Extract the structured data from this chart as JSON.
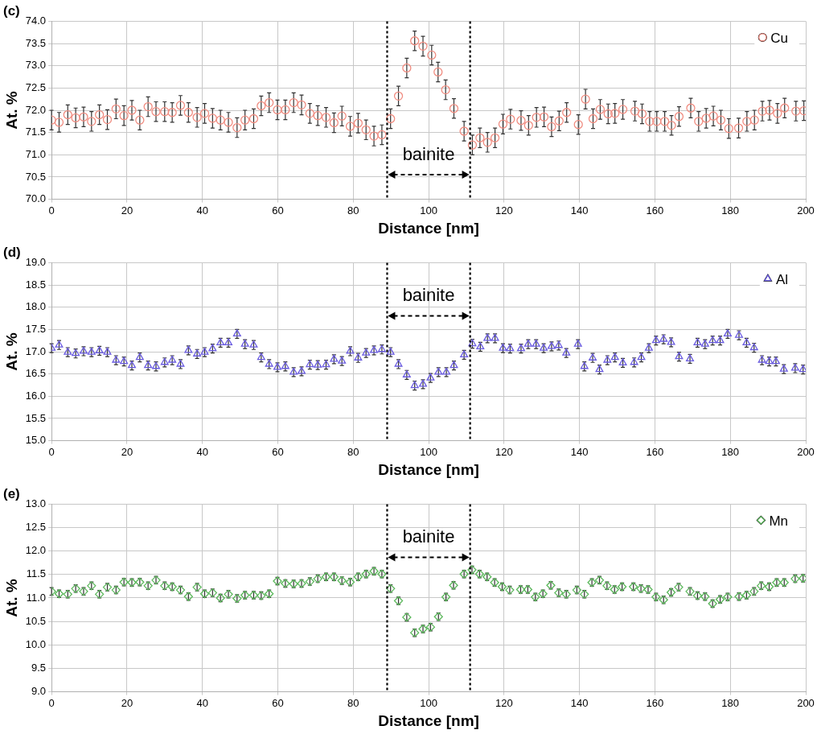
{
  "chart_data": [
    {
      "type": "scatter",
      "title": "(c)",
      "xlabel": "Distance [nm]",
      "ylabel": "At. %",
      "xlim": [
        0,
        200
      ],
      "xticks": [
        0,
        20,
        40,
        60,
        80,
        100,
        120,
        140,
        160,
        180,
        200
      ],
      "ylim": [
        70,
        74
      ],
      "yticks": [
        {
          "value": 70,
          "label": "70.0"
        },
        {
          "value": 70.5,
          "label": "70.5"
        },
        {
          "value": 71,
          "label": "71.0"
        },
        {
          "value": 71.5,
          "label": "71.5"
        },
        {
          "value": 72,
          "label": "72.0"
        },
        {
          "value": 72.5,
          "label": "72.5"
        },
        {
          "value": 73,
          "label": "73.0"
        },
        {
          "value": 73.5,
          "label": "73.5"
        },
        {
          "value": 74,
          "label": "74.0"
        }
      ],
      "grid": true,
      "legend": "top right",
      "marker": "circle",
      "ref_lines": [
        {
          "axis": "x",
          "value": 89,
          "color": "#000000",
          "line_style": "dotted"
        },
        {
          "axis": "x",
          "value": 111,
          "color": "#000000",
          "line_style": "dotted"
        }
      ],
      "annotations": [
        "bainite"
      ],
      "series": [
        {
          "name": "Cu",
          "color": "#f08c80",
          "x": [
            0,
            2.0,
            4.3,
            6.4,
            8.5,
            10.6,
            12.7,
            14.8,
            17.1,
            19.2,
            21.3,
            23.4,
            25.6,
            27.7,
            30.0,
            32.0,
            34.2,
            36.3,
            38.6,
            40.6,
            42.7,
            44.8,
            46.9,
            49.2,
            51.3,
            53.6,
            55.6,
            57.7,
            59.9,
            62.0,
            64.2,
            66.3,
            68.5,
            70.6,
            72.8,
            74.9,
            77.0,
            79.2,
            81.3,
            83.4,
            85.5,
            87.6,
            89.9,
            92.0,
            94.2,
            96.3,
            98.5,
            100.8,
            102.5,
            104.5,
            106.7,
            109.4,
            111.6,
            113.6,
            115.6,
            117.6,
            119.7,
            121.7,
            124.5,
            126.5,
            128.6,
            130.6,
            132.6,
            134.6,
            136.6,
            139.7,
            141.6,
            143.6,
            145.5,
            147.6,
            149.4,
            151.5,
            154.7,
            156.6,
            158.6,
            160.5,
            162.6,
            164.4,
            166.4,
            169.5,
            171.6,
            173.6,
            175.5,
            177.5,
            179.6,
            182.2,
            184.4,
            186.4,
            188.5,
            190.4,
            192.5,
            194.4,
            197.4,
            199.5
          ],
          "values": [
            71.78,
            71.73,
            71.9,
            71.83,
            71.85,
            71.75,
            71.9,
            71.79,
            72.03,
            71.88,
            72.0,
            71.78,
            72.08,
            71.97,
            71.97,
            71.95,
            72.11,
            71.95,
            71.84,
            71.93,
            71.82,
            71.78,
            71.73,
            71.61,
            71.78,
            71.81,
            72.1,
            72.17,
            72.01,
            72.01,
            72.17,
            72.12,
            71.93,
            71.88,
            71.84,
            71.72,
            71.87,
            71.64,
            71.71,
            71.56,
            71.42,
            71.45,
            71.81,
            72.32,
            72.95,
            73.56,
            73.44,
            73.24,
            72.86,
            72.46,
            72.04,
            71.53,
            71.22,
            71.38,
            71.28,
            71.38,
            71.69,
            71.8,
            71.77,
            71.66,
            71.84,
            71.85,
            71.63,
            71.76,
            71.95,
            71.68,
            72.25,
            71.81,
            72.02,
            71.92,
            71.93,
            72.02,
            71.98,
            71.92,
            71.75,
            71.75,
            71.75,
            71.66,
            71.86,
            72.05,
            71.75,
            71.82,
            71.87,
            71.78,
            71.59,
            71.6,
            71.75,
            71.78,
            71.98,
            72.0,
            71.93,
            72.05,
            71.98,
            71.99
          ],
          "errors": [
            0.22,
            0.22,
            0.22,
            0.22,
            0.22,
            0.22,
            0.22,
            0.22,
            0.22,
            0.22,
            0.22,
            0.22,
            0.22,
            0.22,
            0.22,
            0.22,
            0.22,
            0.22,
            0.22,
            0.22,
            0.22,
            0.22,
            0.22,
            0.22,
            0.22,
            0.22,
            0.22,
            0.22,
            0.22,
            0.22,
            0.22,
            0.22,
            0.22,
            0.22,
            0.22,
            0.22,
            0.22,
            0.22,
            0.22,
            0.22,
            0.22,
            0.22,
            0.22,
            0.22,
            0.22,
            0.22,
            0.22,
            0.22,
            0.22,
            0.22,
            0.22,
            0.22,
            0.22,
            0.22,
            0.22,
            0.22,
            0.22,
            0.22,
            0.22,
            0.22,
            0.22,
            0.22,
            0.22,
            0.22,
            0.22,
            0.22,
            0.22,
            0.22,
            0.22,
            0.22,
            0.22,
            0.22,
            0.22,
            0.22,
            0.22,
            0.22,
            0.22,
            0.22,
            0.22,
            0.22,
            0.22,
            0.22,
            0.22,
            0.22,
            0.22,
            0.22,
            0.22,
            0.22,
            0.22,
            0.22,
            0.22,
            0.22,
            0.22,
            0.22
          ]
        }
      ]
    },
    {
      "type": "scatter",
      "title": "(d)",
      "xlabel": "Distance [nm]",
      "ylabel": "At. %",
      "xlim": [
        0,
        200
      ],
      "xticks": [
        0,
        20,
        40,
        60,
        80,
        100,
        120,
        140,
        160,
        180,
        200
      ],
      "ylim": [
        15,
        19
      ],
      "yticks": [
        {
          "value": 15,
          "label": "15.0"
        },
        {
          "value": 15.5,
          "label": "15.5"
        },
        {
          "value": 16,
          "label": "16.0"
        },
        {
          "value": 16.5,
          "label": "16.5"
        },
        {
          "value": 17,
          "label": "17.0"
        },
        {
          "value": 17.5,
          "label": "17.5"
        },
        {
          "value": 18,
          "label": "18.0"
        },
        {
          "value": 18.5,
          "label": "18.5"
        },
        {
          "value": 19,
          "label": "19.0"
        }
      ],
      "grid": true,
      "legend": "top right",
      "marker": "triangle",
      "ref_lines": [
        {
          "axis": "x",
          "value": 89,
          "color": "#000000",
          "line_style": "dotted"
        },
        {
          "axis": "x",
          "value": 111,
          "color": "#000000",
          "line_style": "dotted"
        }
      ],
      "annotations": [
        "bainite"
      ],
      "series": [
        {
          "name": "Al",
          "color": "#6a5ce0",
          "x": [
            0,
            2.0,
            4.3,
            6.4,
            8.5,
            10.6,
            12.7,
            14.8,
            17.1,
            19.2,
            21.3,
            23.4,
            25.6,
            27.7,
            30.0,
            32.0,
            34.2,
            36.3,
            38.6,
            40.6,
            42.7,
            44.8,
            46.9,
            49.2,
            51.3,
            53.6,
            55.6,
            57.7,
            59.9,
            62.0,
            64.2,
            66.3,
            68.5,
            70.6,
            72.8,
            74.9,
            77.0,
            79.2,
            81.3,
            83.4,
            85.5,
            87.6,
            89.9,
            92.0,
            94.2,
            96.3,
            98.5,
            100.5,
            102.6,
            104.7,
            106.7,
            109.4,
            111.6,
            113.7,
            115.6,
            117.6,
            119.7,
            121.6,
            124.5,
            126.4,
            128.5,
            130.5,
            132.6,
            134.5,
            136.5,
            139.6,
            141.3,
            143.5,
            145.3,
            147.4,
            149.4,
            151.5,
            154.5,
            156.4,
            158.4,
            160.3,
            162.3,
            164.3,
            166.4,
            169.3,
            171.3,
            173.3,
            175.3,
            177.3,
            179.3,
            182.3,
            184.3,
            186.3,
            188.4,
            190.3,
            192.1,
            194.2,
            197.2,
            199.3
          ],
          "values": [
            17.08,
            17.15,
            16.99,
            16.96,
            17.01,
            16.99,
            17.02,
            16.99,
            16.81,
            16.78,
            16.69,
            16.87,
            16.69,
            16.67,
            16.76,
            16.81,
            16.72,
            17.03,
            16.95,
            16.99,
            17.07,
            17.2,
            17.2,
            17.4,
            17.17,
            17.15,
            16.87,
            16.72,
            16.65,
            16.67,
            16.54,
            16.56,
            16.71,
            16.7,
            16.71,
            16.83,
            16.79,
            17.01,
            16.86,
            16.97,
            17.03,
            17.05,
            16.99,
            16.72,
            16.48,
            16.24,
            16.27,
            16.41,
            16.54,
            16.54,
            16.69,
            16.93,
            17.18,
            17.11,
            17.3,
            17.3,
            17.08,
            17.07,
            17.07,
            17.17,
            17.17,
            17.08,
            17.12,
            17.14,
            16.97,
            17.17,
            16.67,
            16.86,
            16.6,
            16.81,
            16.87,
            16.75,
            16.76,
            16.87,
            17.08,
            17.25,
            17.28,
            17.21,
            16.89,
            16.84,
            17.2,
            17.17,
            17.25,
            17.25,
            17.4,
            17.37,
            17.2,
            17.09,
            16.81,
            16.78,
            16.78,
            16.61,
            16.63,
            16.6
          ],
          "errors": [
            0.1,
            0.1,
            0.1,
            0.1,
            0.1,
            0.1,
            0.1,
            0.1,
            0.1,
            0.1,
            0.1,
            0.1,
            0.1,
            0.1,
            0.1,
            0.1,
            0.1,
            0.1,
            0.1,
            0.1,
            0.1,
            0.1,
            0.1,
            0.1,
            0.1,
            0.1,
            0.1,
            0.1,
            0.1,
            0.1,
            0.1,
            0.1,
            0.1,
            0.1,
            0.1,
            0.1,
            0.1,
            0.1,
            0.1,
            0.1,
            0.1,
            0.1,
            0.1,
            0.1,
            0.1,
            0.1,
            0.1,
            0.1,
            0.1,
            0.1,
            0.1,
            0.1,
            0.1,
            0.1,
            0.1,
            0.1,
            0.1,
            0.1,
            0.1,
            0.1,
            0.1,
            0.1,
            0.1,
            0.1,
            0.1,
            0.1,
            0.1,
            0.1,
            0.1,
            0.1,
            0.1,
            0.1,
            0.1,
            0.1,
            0.1,
            0.1,
            0.1,
            0.1,
            0.1,
            0.1,
            0.1,
            0.1,
            0.1,
            0.1,
            0.1,
            0.1,
            0.1,
            0.1,
            0.1,
            0.1,
            0.1,
            0.1,
            0.1,
            0.1
          ]
        }
      ]
    },
    {
      "type": "scatter",
      "title": "(e)",
      "xlabel": "Distance [nm]",
      "ylabel": "At. %",
      "xlim": [
        0,
        200
      ],
      "xticks": [
        0,
        20,
        40,
        60,
        80,
        100,
        120,
        140,
        160,
        180,
        200
      ],
      "ylim": [
        9,
        13
      ],
      "yticks": [
        {
          "value": 9,
          "label": "9.0"
        },
        {
          "value": 9.5,
          "label": "9.5"
        },
        {
          "value": 10,
          "label": "10.0"
        },
        {
          "value": 10.5,
          "label": "10.5"
        },
        {
          "value": 11,
          "label": "11.0"
        },
        {
          "value": 11.5,
          "label": "11.5"
        },
        {
          "value": 12,
          "label": "12.0"
        },
        {
          "value": 12.5,
          "label": "12.5"
        },
        {
          "value": 13,
          "label": "13.0"
        }
      ],
      "grid": true,
      "legend": "top right",
      "marker": "diamond",
      "ref_lines": [
        {
          "axis": "x",
          "value": 89,
          "color": "#000000",
          "line_style": "dotted"
        },
        {
          "axis": "x",
          "value": 111,
          "color": "#000000",
          "line_style": "dotted"
        }
      ],
      "annotations": [
        "bainite"
      ],
      "series": [
        {
          "name": "Mn",
          "color": "#5cb85c",
          "x": [
            0,
            2.0,
            4.3,
            6.4,
            8.5,
            10.6,
            12.7,
            14.8,
            17.1,
            19.2,
            21.3,
            23.4,
            25.6,
            27.7,
            30.0,
            32.0,
            34.2,
            36.3,
            38.6,
            40.6,
            42.7,
            44.8,
            46.9,
            49.2,
            51.3,
            53.6,
            55.6,
            57.7,
            59.9,
            62.0,
            64.2,
            66.3,
            68.5,
            70.6,
            72.8,
            74.9,
            77.0,
            79.2,
            81.3,
            83.4,
            85.5,
            87.6,
            89.9,
            92.0,
            94.2,
            96.3,
            98.5,
            100.5,
            102.6,
            104.6,
            106.6,
            109.4,
            111.5,
            113.5,
            115.5,
            117.5,
            119.5,
            121.5,
            124.4,
            126.3,
            128.3,
            130.3,
            132.4,
            134.5,
            136.5,
            139.3,
            141.3,
            143.3,
            145.3,
            147.3,
            149.3,
            151.3,
            154.3,
            156.3,
            158.2,
            160.3,
            162.3,
            164.3,
            166.3,
            169.3,
            171.3,
            173.3,
            175.3,
            177.3,
            179.3,
            182.3,
            184.3,
            186.3,
            188.2,
            190.3,
            192.3,
            194.3,
            197.2,
            199.3
          ],
          "values": [
            11.14,
            11.09,
            11.08,
            11.2,
            11.14,
            11.26,
            11.08,
            11.23,
            11.17,
            11.34,
            11.33,
            11.34,
            11.26,
            11.38,
            11.26,
            11.24,
            11.17,
            11.03,
            11.23,
            11.09,
            11.11,
            11.0,
            11.08,
            10.99,
            11.06,
            11.06,
            11.05,
            11.09,
            11.36,
            11.31,
            11.3,
            11.31,
            11.35,
            11.41,
            11.45,
            11.45,
            11.37,
            11.34,
            11.45,
            11.51,
            11.57,
            11.51,
            11.2,
            10.94,
            10.59,
            10.26,
            10.34,
            10.38,
            10.6,
            11.02,
            11.27,
            11.51,
            11.6,
            11.51,
            11.45,
            11.33,
            11.24,
            11.17,
            11.18,
            11.18,
            11.02,
            11.09,
            11.27,
            11.11,
            11.08,
            11.17,
            11.08,
            11.33,
            11.38,
            11.26,
            11.18,
            11.24,
            11.24,
            11.2,
            11.18,
            11.02,
            10.96,
            11.12,
            11.23,
            11.14,
            11.05,
            11.03,
            10.88,
            10.97,
            11.02,
            11.03,
            11.06,
            11.14,
            11.26,
            11.24,
            11.33,
            11.33,
            11.41,
            11.42
          ],
          "errors": [
            0.08,
            0.08,
            0.08,
            0.08,
            0.08,
            0.08,
            0.08,
            0.08,
            0.08,
            0.08,
            0.08,
            0.08,
            0.08,
            0.08,
            0.08,
            0.08,
            0.08,
            0.08,
            0.08,
            0.08,
            0.08,
            0.08,
            0.08,
            0.08,
            0.08,
            0.08,
            0.08,
            0.08,
            0.08,
            0.08,
            0.08,
            0.08,
            0.08,
            0.08,
            0.08,
            0.08,
            0.08,
            0.08,
            0.08,
            0.08,
            0.08,
            0.08,
            0.08,
            0.08,
            0.08,
            0.08,
            0.08,
            0.08,
            0.08,
            0.08,
            0.08,
            0.08,
            0.08,
            0.08,
            0.08,
            0.08,
            0.08,
            0.08,
            0.08,
            0.08,
            0.08,
            0.08,
            0.08,
            0.08,
            0.08,
            0.08,
            0.08,
            0.08,
            0.08,
            0.08,
            0.08,
            0.08,
            0.08,
            0.08,
            0.08,
            0.08,
            0.08,
            0.08,
            0.08,
            0.08,
            0.08,
            0.08,
            0.08,
            0.08,
            0.08,
            0.08,
            0.08,
            0.08,
            0.08,
            0.08,
            0.08,
            0.08,
            0.08,
            0.08
          ]
        }
      ]
    }
  ]
}
